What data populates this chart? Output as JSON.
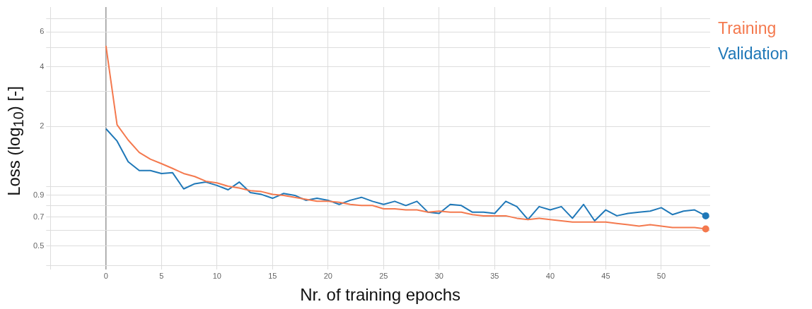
{
  "chart_data": {
    "type": "line",
    "xlabel": "Nr. of training epochs",
    "ylabel": "Loss (log$_{10}$) [-]",
    "x": [
      0,
      1,
      2,
      3,
      4,
      5,
      6,
      7,
      8,
      9,
      10,
      11,
      12,
      13,
      14,
      15,
      16,
      17,
      18,
      19,
      20,
      21,
      22,
      23,
      24,
      25,
      26,
      27,
      28,
      29,
      30,
      31,
      32,
      33,
      34,
      35,
      36,
      37,
      38,
      39,
      40,
      41,
      42,
      43,
      44,
      45,
      46,
      47,
      48,
      49,
      50,
      51,
      52,
      53,
      54
    ],
    "series": [
      {
        "name": "Training",
        "color": "#f4794e",
        "values": [
          5.1,
          2.04,
          1.71,
          1.48,
          1.37,
          1.3,
          1.23,
          1.16,
          1.12,
          1.06,
          1.04,
          1.0,
          0.98,
          0.95,
          0.94,
          0.91,
          0.9,
          0.88,
          0.86,
          0.84,
          0.84,
          0.83,
          0.81,
          0.8,
          0.8,
          0.77,
          0.77,
          0.76,
          0.76,
          0.74,
          0.75,
          0.74,
          0.74,
          0.72,
          0.71,
          0.71,
          0.71,
          0.69,
          0.68,
          0.69,
          0.68,
          0.67,
          0.66,
          0.66,
          0.66,
          0.66,
          0.65,
          0.64,
          0.63,
          0.64,
          0.63,
          0.62,
          0.62,
          0.62,
          0.61
        ]
      },
      {
        "name": "Validation",
        "color": "#1f78b8",
        "values": [
          1.95,
          1.69,
          1.33,
          1.2,
          1.2,
          1.16,
          1.17,
          0.97,
          1.03,
          1.05,
          1.01,
          0.96,
          1.05,
          0.93,
          0.91,
          0.87,
          0.92,
          0.9,
          0.85,
          0.87,
          0.85,
          0.81,
          0.85,
          0.88,
          0.84,
          0.81,
          0.84,
          0.8,
          0.84,
          0.74,
          0.73,
          0.81,
          0.8,
          0.74,
          0.74,
          0.73,
          0.84,
          0.79,
          0.68,
          0.79,
          0.76,
          0.79,
          0.69,
          0.81,
          0.67,
          0.76,
          0.71,
          0.73,
          0.74,
          0.75,
          0.78,
          0.72,
          0.75,
          0.76,
          0.71
        ]
      }
    ],
    "xlim": [
      -5,
      54.4
    ],
    "xticks": [
      {
        "value": -5,
        "label": null
      },
      0,
      5,
      10,
      15,
      20,
      25,
      30,
      35,
      40,
      45,
      50
    ],
    "ylim": [
      0.4,
      8
    ],
    "yticks": [
      {
        "value": 0.4,
        "label": null
      },
      0.5,
      {
        "value": 0.6,
        "label": null
      },
      0.7,
      {
        "value": 0.8,
        "label": null
      },
      0.9,
      {
        "value": 1,
        "label": null
      },
      2,
      {
        "value": 3,
        "label": null
      },
      4,
      {
        "value": 5,
        "label": null
      },
      6,
      {
        "value": 7,
        "label": null
      }
    ],
    "log": "y",
    "grid": true,
    "legend": "top right",
    "marker": "none",
    "line_style": "solid"
  }
}
